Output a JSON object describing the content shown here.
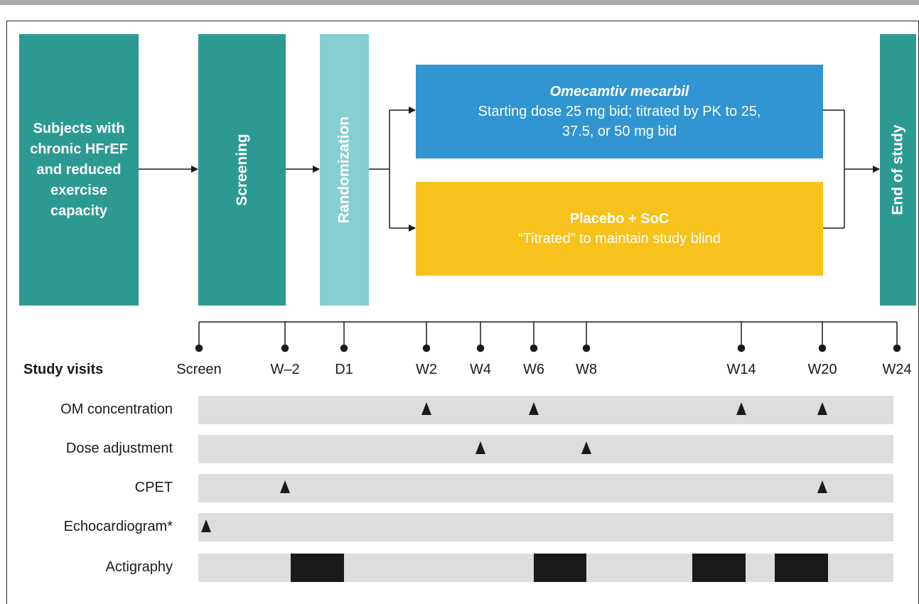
{
  "boxes": {
    "subjects": "Subjects with chronic HFrEF and reduced exercise capacity",
    "screening": "Screening",
    "randomization": "Randomization",
    "end_of_study": "End of study"
  },
  "arms": {
    "omecamtiv": {
      "title": "Omecamtiv mecarbil",
      "body": "Starting dose 25 mg bid; titrated by PK to 25, 37.5, or 50 mg bid"
    },
    "placebo": {
      "title": "Placebo + SoC",
      "body": "“Titrated” to maintain study blind"
    }
  },
  "timeline": {
    "header": "Study visits",
    "visits": [
      "Screen",
      "W–2",
      "D1",
      "W2",
      "W4",
      "W6",
      "W8",
      "W14",
      "W20",
      "W24"
    ]
  },
  "rows": [
    {
      "label": "OM concentration",
      "markers": [
        "W2",
        "W6",
        "W14",
        "W20"
      ]
    },
    {
      "label": "Dose adjustment",
      "markers": [
        "W4",
        "W8"
      ]
    },
    {
      "label": "CPET",
      "markers": [
        "W–2",
        "W20"
      ]
    },
    {
      "label": "Echocardiogram*",
      "markers": [
        "Screen"
      ]
    },
    {
      "label": "Actigraphy",
      "periods": [
        [
          "W–2",
          "D1"
        ],
        [
          "W6",
          "W8"
        ],
        [
          "W14 (pre)",
          "W14"
        ],
        [
          "W20 (pre)",
          "W20"
        ]
      ]
    }
  ],
  "colors": {
    "teal": "#2c9a92",
    "light_teal": "#86ced1",
    "blue": "#3195d2",
    "yellow": "#f8c21d",
    "track": "#dcddde"
  }
}
